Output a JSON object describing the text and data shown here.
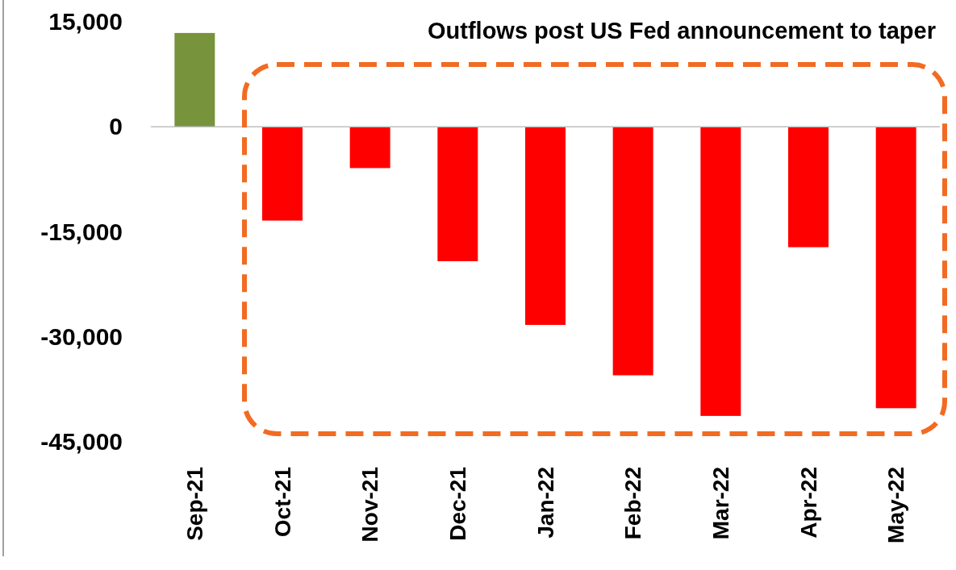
{
  "chart_data": {
    "type": "bar",
    "annotations": [
      "Outflows post US Fed announcement to taper"
    ],
    "categories": [
      "Sep-21",
      "Oct-21",
      "Nov-21",
      "Dec-21",
      "Jan-22",
      "Feb-22",
      "Mar-22",
      "Apr-22",
      "May-22"
    ],
    "values": [
      13400,
      -13400,
      -5900,
      -19200,
      -28300,
      -35500,
      -41300,
      -17200,
      -40200
    ],
    "colors": [
      "#77933c",
      "#ff0000",
      "#ff0000",
      "#ff0000",
      "#ff0000",
      "#ff0000",
      "#ff0000",
      "#ff0000",
      "#ff0000"
    ],
    "ylim": [
      -45000,
      15000
    ],
    "yticks": [
      {
        "value": 15000,
        "label": "15,000"
      },
      0,
      {
        "value": -15000,
        "label": "-15,000"
      },
      {
        "value": -30000,
        "label": "-30,000"
      },
      {
        "value": -45000,
        "label": "-45,000"
      }
    ]
  }
}
